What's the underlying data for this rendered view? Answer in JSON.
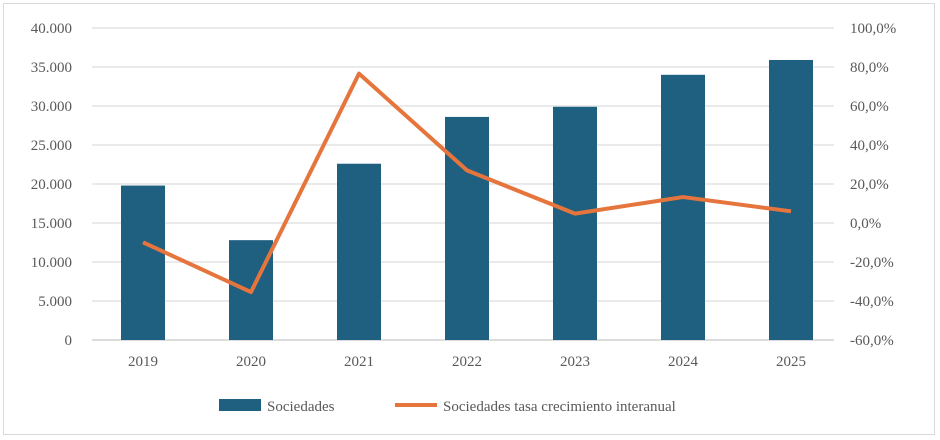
{
  "chart_data": {
    "type": "bar+line",
    "categories": [
      "2019",
      "2020",
      "2021",
      "2022",
      "2023",
      "2024",
      "2025"
    ],
    "series": [
      {
        "name": "Sociedades",
        "type": "bar",
        "axis": "left",
        "color": "#1f5f80",
        "values": [
          19800,
          12800,
          22600,
          28600,
          29900,
          34000,
          35900
        ]
      },
      {
        "name": "Sociedades tasa crecimiento interanual",
        "type": "line",
        "axis": "right",
        "color": "#e5753d",
        "values": [
          -9.9,
          -35.4,
          76.6,
          27.0,
          4.8,
          13.3,
          6.0
        ]
      }
    ],
    "left_axis": {
      "ylim": [
        0,
        40000
      ],
      "ticks": [
        "0",
        "5.000",
        "10.000",
        "15.000",
        "20.000",
        "25.000",
        "30.000",
        "35.000",
        "40.000"
      ]
    },
    "right_axis": {
      "ylim": [
        -60,
        100
      ],
      "ticks": [
        "-60,0%",
        "-40,0%",
        "-20,0%",
        "0,0%",
        "20,0%",
        "40,0%",
        "60,0%",
        "80,0%",
        "100,0%"
      ]
    },
    "grid": true,
    "legend": "bottom"
  }
}
